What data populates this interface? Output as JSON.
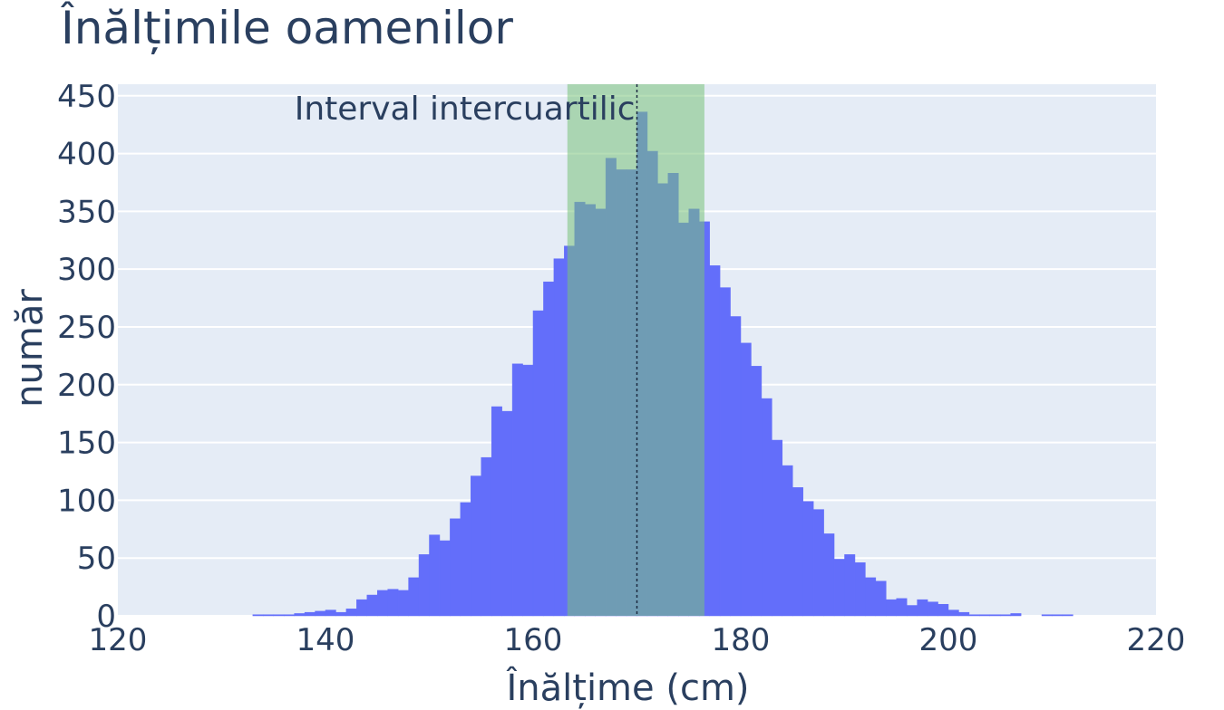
{
  "chart_data": {
    "type": "bar",
    "title": "Înălțimile oamenilor",
    "xlabel": "Înălțime (cm)",
    "ylabel": "număr",
    "xlim": [
      120,
      220
    ],
    "ylim": [
      0,
      460
    ],
    "x_ticks": [
      120,
      140,
      160,
      180,
      200,
      220
    ],
    "y_ticks": [
      0,
      50,
      100,
      150,
      200,
      250,
      300,
      350,
      400,
      450
    ],
    "grid": true,
    "bin_width": 1,
    "bin_start": 133,
    "values": [
      1,
      1,
      1,
      1,
      2,
      3,
      4,
      5,
      3,
      6,
      14,
      18,
      22,
      23,
      22,
      33,
      53,
      70,
      65,
      84,
      98,
      121,
      137,
      181,
      177,
      218,
      217,
      264,
      289,
      309,
      320,
      358,
      356,
      352,
      396,
      386,
      386,
      436,
      402,
      374,
      383,
      340,
      352,
      341,
      303,
      284,
      259,
      236,
      216,
      188,
      152,
      130,
      111,
      99,
      92,
      71,
      49,
      53,
      46,
      33,
      30,
      14,
      15,
      9,
      14,
      12,
      10,
      5,
      3,
      1,
      1,
      1,
      1,
      2,
      0,
      0,
      1,
      1,
      1
    ],
    "bar_color": "#636efa",
    "annotation": {
      "label": "Interval intercuartilic",
      "x0": 163.3,
      "x1": 176.5,
      "color": "#7ac27a",
      "median": 170
    }
  }
}
